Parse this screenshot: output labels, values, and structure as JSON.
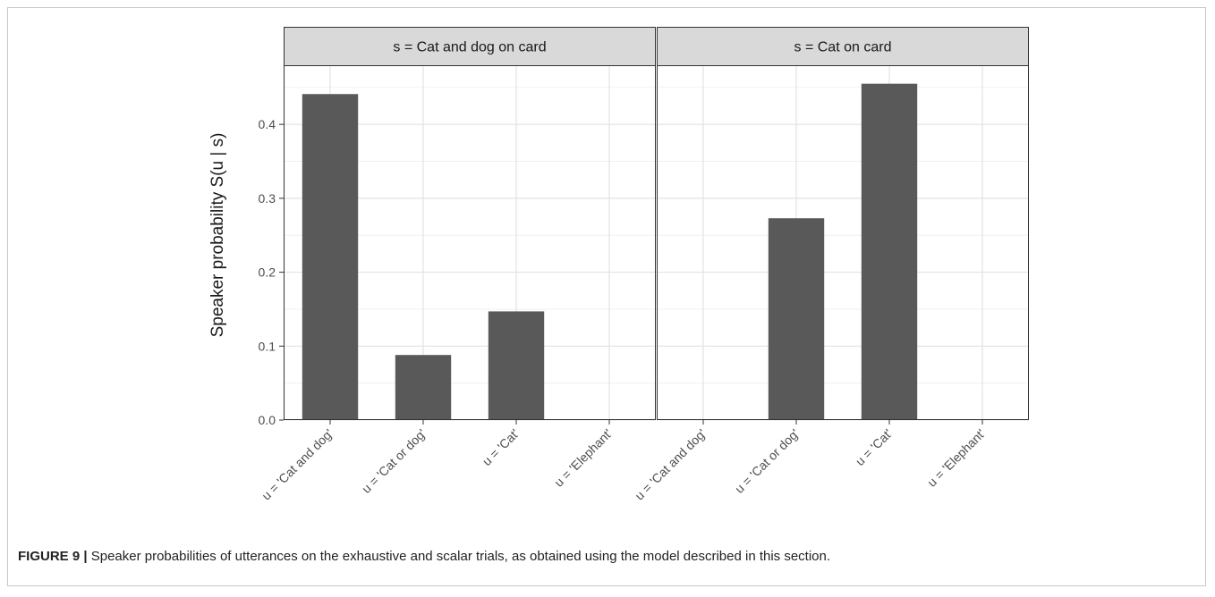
{
  "figure": {
    "label": "FIGURE 9 |",
    "caption": "Speaker probabilities of utterances on the exhaustive and scalar trials, as obtained using the model described in this section."
  },
  "chart_data": {
    "type": "bar",
    "ylabel": "Speaker probability  S(u | s)",
    "xlabel": "",
    "ylim": [
      0,
      0.48
    ],
    "yticks": [
      0.0,
      0.1,
      0.2,
      0.3,
      0.4
    ],
    "ytick_labels": [
      "0.0",
      "0.1",
      "0.2",
      "0.3",
      "0.4"
    ],
    "grid": true,
    "bar_color": "#595959",
    "categories": [
      "u = 'Cat and dog'",
      "u = 'Cat or dog'",
      "u = 'Cat'",
      "u = 'Elephant'"
    ],
    "facets": [
      {
        "title": "s = Cat and dog on card",
        "values": [
          0.441,
          0.088,
          0.147,
          0.0
        ]
      },
      {
        "title": "s = Cat on card",
        "values": [
          0.0,
          0.273,
          0.455,
          0.0
        ]
      }
    ]
  }
}
